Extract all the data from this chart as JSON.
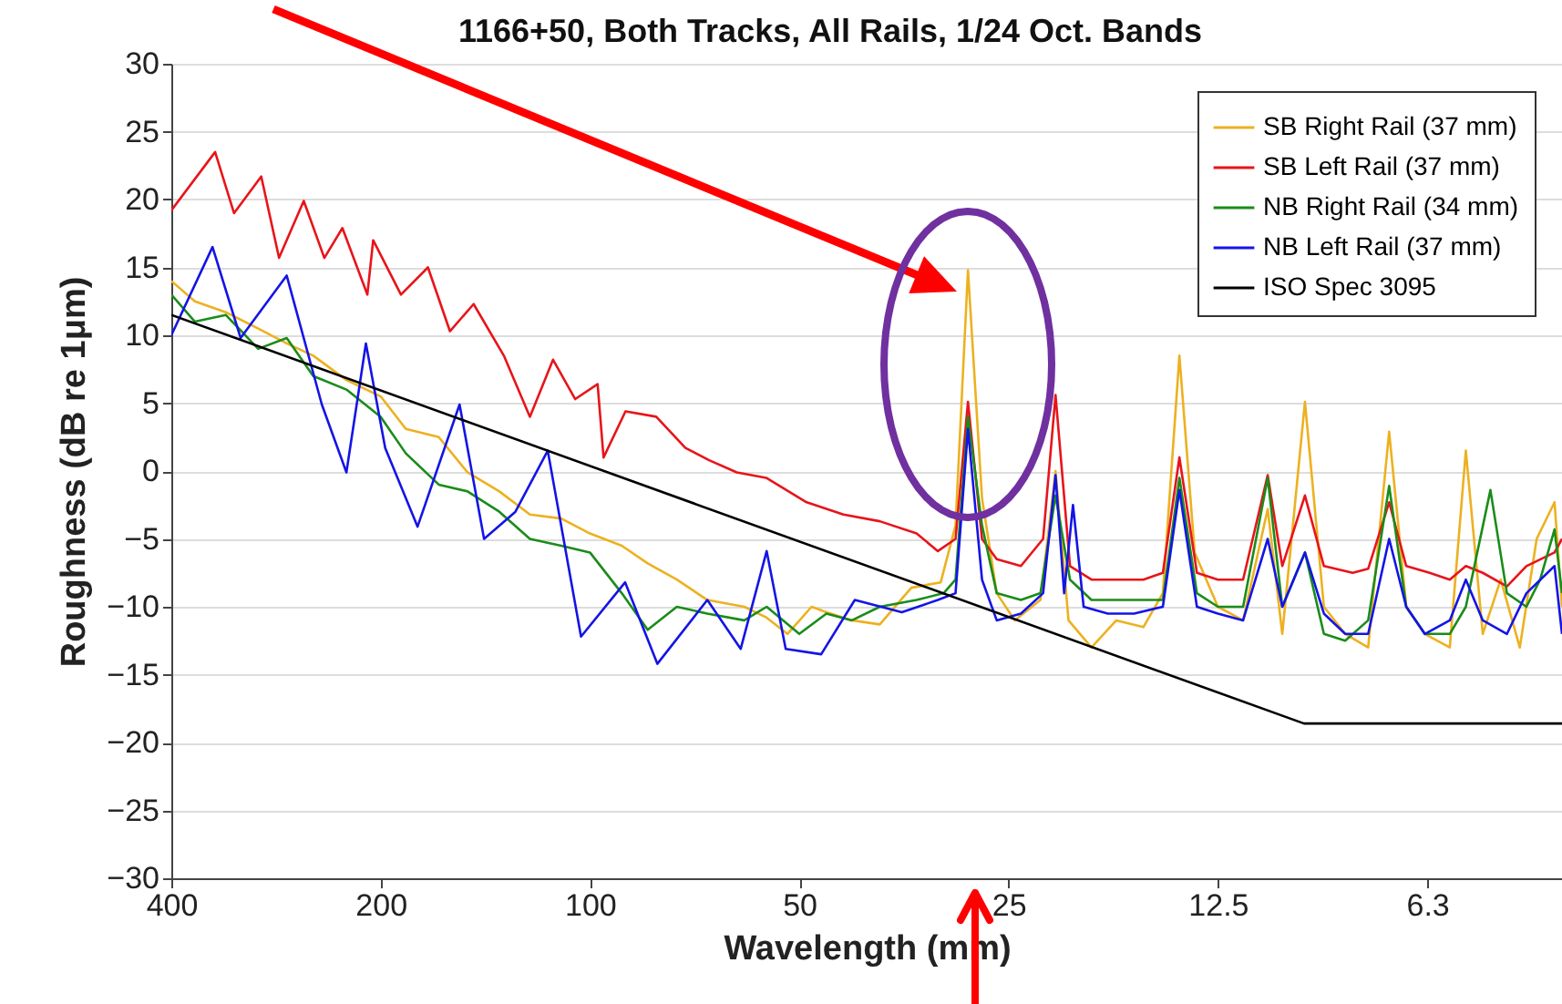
{
  "chart_data": {
    "type": "line",
    "title": "1166+50, Both Tracks, All Rails, 1/24 Oct. Bands",
    "xlabel": "Wavelength (mm)",
    "ylabel": "Roughness (dB re 1μm)",
    "log": "x",
    "grid": "y",
    "legend": "top right",
    "xlim": [
      400,
      4
    ],
    "xticks": [
      400,
      200,
      100,
      50,
      25,
      12.5,
      {
        "value": 6.25,
        "label": "6.3"
      }
    ],
    "ylim": [
      -30,
      30
    ],
    "yticks": [
      -30,
      -25,
      -20,
      -15,
      -10,
      -5,
      0,
      5,
      10,
      15,
      20,
      25,
      30
    ],
    "series": [
      {
        "name": "SB Right Rail (37 mm)",
        "color": "#edb120",
        "x": [
          400,
          370,
          334,
          300,
          273,
          250,
          224,
          200,
          184,
          165,
          150,
          135,
          122,
          110,
          100,
          90,
          82.6,
          75,
          67.8,
          60,
          55.7,
          52,
          48,
          45.7,
          42,
          38.3,
          34.5,
          31.3,
          29.8,
          28.6,
          27.3,
          26,
          24.5,
          22.5,
          21.4,
          20.5,
          19,
          17.5,
          16,
          15,
          14.2,
          13.5,
          12.5,
          11.5,
          10.6,
          10.1,
          9.37,
          8.8,
          8.2,
          7.6,
          7.09,
          6.7,
          6.3,
          5.8,
          5.5,
          5.2,
          4.9,
          4.6,
          4.35,
          4.1,
          4
        ],
        "values": [
          14,
          12.5,
          11.7,
          10.5,
          9.4,
          8.5,
          6.7,
          5.5,
          3.1,
          2.5,
          -0.1,
          -1.5,
          -3.2,
          -3.5,
          -4.6,
          -5.5,
          -6.8,
          -8,
          -9.5,
          -10,
          -10.8,
          -12,
          -10,
          -10.4,
          -11,
          -11.3,
          -8.6,
          -8.2,
          -4,
          14.8,
          -2,
          -9,
          -11,
          -9.5,
          0,
          -11,
          -13,
          -11,
          -11.5,
          -9,
          8.5,
          -6,
          -10,
          -11,
          -2.8,
          -12,
          5.1,
          -10,
          -12,
          -13,
          2.9,
          -10,
          -12,
          -13,
          1.5,
          -12,
          -8,
          -13,
          -5,
          -2.3,
          -10
        ]
      },
      {
        "name": "SB Left Rail (37 mm)",
        "color": "#e8141a",
        "x": [
          400,
          346,
          325,
          297,
          280,
          258,
          241,
          227,
          209,
          205,
          187,
          171,
          159,
          147,
          133,
          122,
          113,
          105,
          97.5,
          95.6,
          88.9,
          80.3,
          72.9,
          67.4,
          61.5,
          55.8,
          48.8,
          43.2,
          38.3,
          33.9,
          31.6,
          29.8,
          28.6,
          27.3,
          26,
          24,
          22.3,
          21.4,
          20.4,
          19,
          17.5,
          16,
          15,
          14.2,
          13.4,
          12.5,
          11.5,
          10.6,
          10.1,
          9.37,
          8.8,
          8,
          7.6,
          7.09,
          6.7,
          6.2,
          5.8,
          5.5,
          5.2,
          4.8,
          4.5,
          4.1,
          4
        ],
        "values": [
          19.2,
          23.5,
          19,
          21.7,
          15.7,
          19.9,
          15.7,
          17.9,
          13,
          17,
          13,
          15,
          10.3,
          12.3,
          8.5,
          4,
          8.2,
          5.3,
          6.4,
          1,
          4.4,
          4,
          1.7,
          0.8,
          -0.1,
          -0.5,
          -2.3,
          -3.2,
          -3.7,
          -4.6,
          -5.9,
          -5,
          5.1,
          -5,
          -6.5,
          -7,
          -5,
          5.6,
          -7,
          -8,
          -8,
          -8,
          -7.5,
          1,
          -7.5,
          -8,
          -8,
          -0.3,
          -7,
          -1.8,
          -7,
          -7.5,
          -7.2,
          -2.3,
          -7,
          -7.5,
          -8,
          -7,
          -7.5,
          -8.5,
          -7,
          -6,
          -5
        ]
      },
      {
        "name": "NB Right Rail (34 mm)",
        "color": "#1a8c1a",
        "x": [
          400,
          370,
          334,
          300,
          273,
          250,
          224,
          200,
          184,
          165,
          150,
          135,
          122,
          110,
          100,
          90,
          82.6,
          75,
          67.8,
          60,
          55.7,
          50,
          45.7,
          42,
          38.3,
          33.9,
          31,
          29.8,
          28.6,
          27.3,
          26,
          24,
          22.5,
          21.4,
          20.4,
          19,
          17.5,
          16,
          15,
          14.2,
          13.4,
          12.5,
          11.5,
          10.6,
          10.1,
          9.37,
          8.8,
          8.2,
          7.6,
          7.09,
          6.7,
          6.3,
          5.8,
          5.5,
          5.07,
          4.8,
          4.5,
          4.3,
          4.1,
          4
        ],
        "values": [
          13,
          11,
          11.5,
          9,
          9.8,
          7,
          6,
          4,
          1.3,
          -1,
          -1.5,
          -3,
          -5,
          -5.5,
          -6,
          -9,
          -11.7,
          -10,
          -10.5,
          -11,
          -10,
          -12,
          -10.5,
          -11,
          -10,
          -9.5,
          -9,
          -8,
          4,
          -4,
          -9,
          -9.5,
          -9,
          -1.8,
          -8,
          -9.5,
          -9.5,
          -9.5,
          -9.5,
          -0.5,
          -9,
          -10,
          -10,
          -0.5,
          -10,
          -6,
          -12,
          -12.5,
          -11,
          -1.1,
          -10,
          -12,
          -12,
          -10,
          -1.4,
          -9,
          -10,
          -8,
          -4.3,
          -9
        ]
      },
      {
        "name": "NB Left Rail (37 mm)",
        "color": "#1414e6",
        "x": [
          400,
          349,
          318,
          273,
          243,
          224,
          210,
          197,
          177,
          154,
          142,
          128,
          115,
          103,
          89,
          80,
          67.8,
          60.7,
          55.7,
          52.3,
          46.5,
          41.6,
          35.6,
          31.6,
          29.8,
          28.6,
          27.3,
          26,
          24,
          22.3,
          21.4,
          20.8,
          20.2,
          19.5,
          18,
          16.5,
          15,
          14.2,
          13.4,
          12.5,
          11.5,
          10.6,
          10.1,
          9.37,
          8.8,
          8.2,
          7.6,
          7.09,
          6.7,
          6.3,
          5.8,
          5.5,
          5.2,
          4.8,
          4.5,
          4.1,
          4
        ],
        "values": [
          10,
          16.5,
          9.8,
          14.4,
          4.9,
          -0.1,
          9.4,
          1.7,
          -4.1,
          4.9,
          -5,
          -3,
          1.5,
          -12.2,
          -8.2,
          -14.2,
          -9.5,
          -13.1,
          -5.9,
          -13.1,
          -13.5,
          -9.5,
          -10.4,
          -9.5,
          -9,
          3.1,
          -8,
          -11,
          -10.5,
          -9,
          -0.3,
          -9,
          -2.5,
          -10,
          -10.5,
          -10.5,
          -10,
          -1.4,
          -10,
          -10.5,
          -11,
          -5,
          -10,
          -6,
          -10.5,
          -12,
          -12,
          -5,
          -10,
          -12,
          -11,
          -8,
          -11,
          -12,
          -9,
          -7,
          -12
        ]
      },
      {
        "name": "ISO Spec 3095",
        "color": "#000000",
        "x": [
          400,
          9.4,
          4
        ],
        "values": [
          11.5,
          -18.6,
          -18.6
        ]
      }
    ]
  }
}
